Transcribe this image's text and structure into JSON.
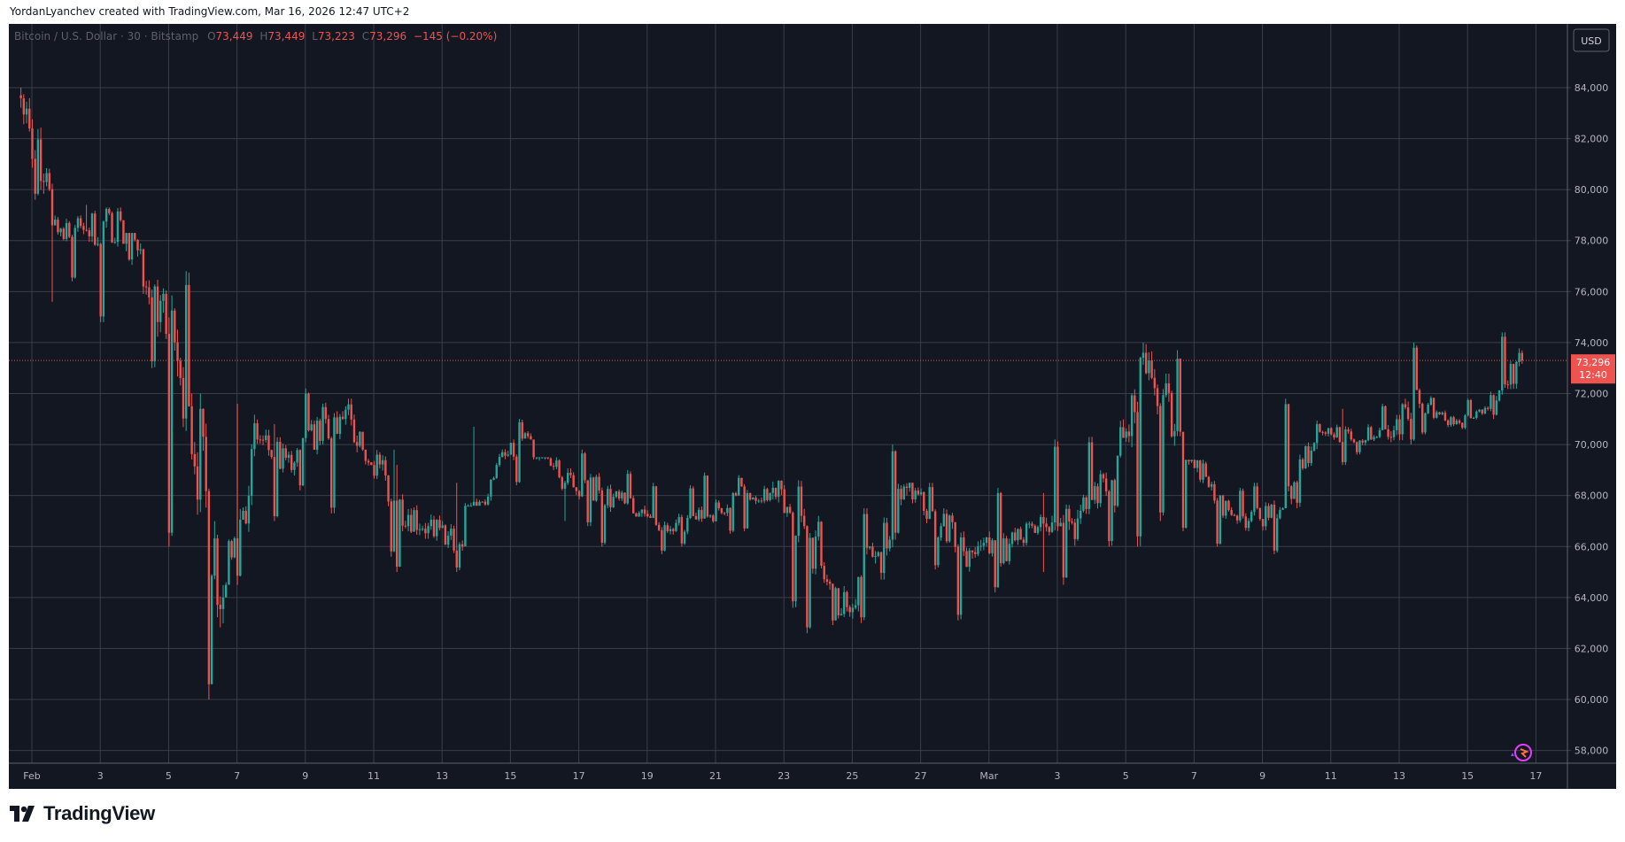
{
  "header": {
    "attribution": "YordanLyanchev created with TradingView.com, Mar 16, 2026 12:47 UTC+2"
  },
  "legend": {
    "symbol": "Bitcoin / U.S. Dollar · 30 · Bitstamp",
    "o_label": "O",
    "o_value": "73,449",
    "h_label": "H",
    "h_value": "73,449",
    "l_label": "L",
    "l_value": "73,223",
    "c_label": "C",
    "c_value": "73,296",
    "change": "−145 (−0.20%)"
  },
  "currency_button": "USD",
  "last_price": {
    "price": "73,296",
    "countdown": "12:40"
  },
  "brand": {
    "name": "TradingView"
  },
  "colors": {
    "background": "#131722",
    "grid": "#3a3e4a",
    "up": "#26a69a",
    "down": "#ef5350",
    "text": "#b2b5be"
  },
  "chart_data": {
    "type": "line",
    "series": [
      {
        "name": "",
        "x": [
          "Feb 1",
          "Feb 2",
          "Feb 3",
          "Feb 4",
          "Feb 5",
          "Feb 6",
          "Feb 7",
          "Feb 8",
          "Feb 9",
          "Feb 10",
          "Feb 11",
          "Feb 12",
          "Feb 13",
          "Feb 14",
          "Feb 15",
          "Feb 16",
          "Feb 17",
          "Feb 18",
          "Feb 19",
          "Feb 20",
          "Feb 21",
          "Feb 22",
          "Feb 23",
          "Feb 24",
          "Feb 25",
          "Feb 26",
          "Feb 27",
          "Feb 28",
          "Mar 1",
          "Mar 2",
          "Mar 3",
          "Mar 4",
          "Mar 5",
          "Mar 6",
          "Mar 7",
          "Mar 8",
          "Mar 9",
          "Mar 10",
          "Mar 11",
          "Mar 12",
          "Mar 13",
          "Mar 14",
          "Mar 15",
          "Mar 16"
        ],
        "close": [
          78600,
          78400,
          78800,
          76200,
          71500,
          64000,
          70200,
          69000,
          71000,
          70500,
          67800,
          66800,
          66000,
          69200,
          70200,
          68500,
          68200,
          67300,
          66600,
          67100,
          68000,
          68100,
          66800,
          63300,
          65600,
          68300,
          66800,
          65700,
          66100,
          66900,
          67100,
          68600,
          72800,
          70500,
          67800,
          67000,
          67500,
          70800,
          70200,
          70600,
          71600,
          70800,
          71400,
          73300
        ],
        "high": [
          84000,
          79400,
          79300,
          78300,
          76800,
          72000,
          71600,
          70800,
          72200,
          71800,
          69800,
          69200,
          68500,
          70700,
          71000,
          69500,
          69800,
          69000,
          68500,
          68400,
          68900,
          68800,
          68600,
          67200,
          67500,
          70000,
          68500,
          67500,
          68300,
          68100,
          70200,
          70300,
          74000,
          73700,
          69400,
          68300,
          68500,
          71800,
          71400,
          71600,
          74000,
          71900,
          71800,
          74400
        ],
        "low": [
          75600,
          76400,
          74800,
          73000,
          66000,
          60000,
          64500,
          67000,
          68200,
          67300,
          65600,
          65000,
          65000,
          67600,
          68400,
          67000,
          66800,
          66000,
          65700,
          66000,
          66500,
          66600,
          63600,
          62600,
          63000,
          64700,
          65100,
          63100,
          64200,
          65000,
          64500,
          66000,
          66000,
          67000,
          66600,
          66000,
          65700,
          67500,
          69200,
          69600,
          70000,
          70400,
          70600,
          71000
        ]
      }
    ],
    "xticks": [
      "Feb",
      "3",
      "5",
      "7",
      "9",
      "11",
      "13",
      "15",
      "17",
      "19",
      "21",
      "23",
      "25",
      "27",
      "Mar",
      "3",
      "5",
      "7",
      "9",
      "11",
      "13",
      "15",
      "17"
    ],
    "yticks": [
      "58,000",
      "60,000",
      "62,000",
      "64,000",
      "66,000",
      "68,000",
      "70,000",
      "72,000",
      "74,000",
      "76,000",
      "78,000",
      "80,000",
      "82,000",
      "84,000"
    ],
    "ylim": [
      57500,
      86500
    ],
    "last_price": 73296,
    "grid": true
  }
}
